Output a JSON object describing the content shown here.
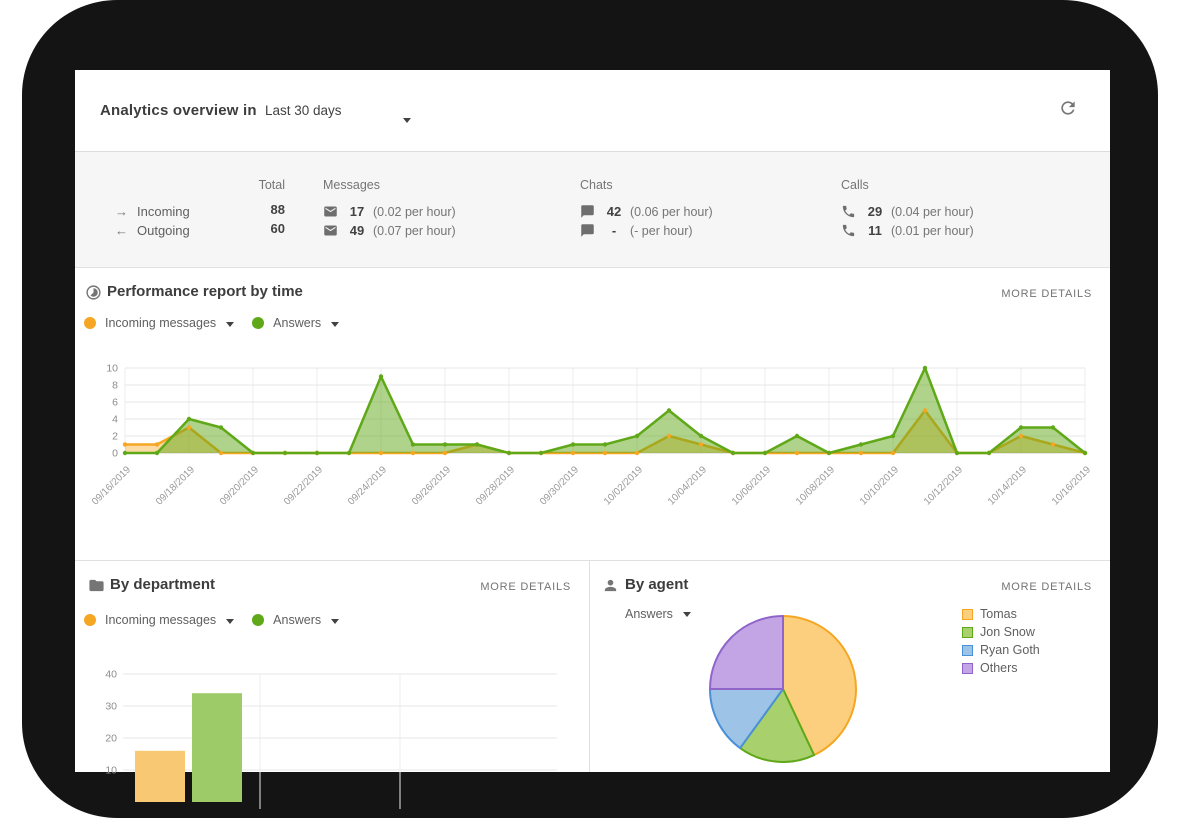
{
  "header": {
    "title": "Analytics overview in",
    "range_label": "Last 30 days"
  },
  "summary": {
    "columns": {
      "total": "Total",
      "messages": "Messages",
      "chats": "Chats",
      "calls": "Calls"
    },
    "rows": [
      {
        "arrow": "→",
        "label": "Incoming",
        "total": "88",
        "messages": {
          "value": "17",
          "rate": "(0.02 per hour)"
        },
        "chats": {
          "value": "42",
          "rate": "(0.06 per hour)"
        },
        "calls": {
          "value": "29",
          "rate": "(0.04 per hour)"
        }
      },
      {
        "arrow": "←",
        "label": "Outgoing",
        "total": "60",
        "messages": {
          "value": "49",
          "rate": "(0.07 per hour)"
        },
        "chats": {
          "value": "-",
          "rate": "(- per hour)"
        },
        "calls": {
          "value": "11",
          "rate": "(0.01 per hour)"
        }
      }
    ]
  },
  "performance": {
    "title": "Performance report by time",
    "more_details": "MORE DETAILS",
    "legend": [
      {
        "label": "Incoming messages",
        "color": "#F5A623"
      },
      {
        "label": "Answers",
        "color": "#5FA818"
      }
    ]
  },
  "department": {
    "title": "By department",
    "more_details": "MORE DETAILS",
    "legend": [
      {
        "label": "Incoming messages",
        "color": "#F5A623"
      },
      {
        "label": "Answers",
        "color": "#5FA818"
      }
    ]
  },
  "agent": {
    "title": "By agent",
    "more_details": "MORE DETAILS",
    "filter_label": "Answers",
    "legend": [
      {
        "label": "Tomas",
        "fill": "#FBCF7D",
        "border": "#F5A623"
      },
      {
        "label": "Jon Snow",
        "fill": "#A8D16E",
        "border": "#5FA818"
      },
      {
        "label": "Ryan Goth",
        "fill": "#9DC3E6",
        "border": "#4A90D9"
      },
      {
        "label": "Others",
        "fill": "#C3A5E6",
        "border": "#9065C9"
      }
    ]
  },
  "chart_data": [
    {
      "type": "area",
      "title": "Performance report by time",
      "x": [
        "09/16/2019",
        "09/17/2019",
        "09/18/2019",
        "09/19/2019",
        "09/20/2019",
        "09/21/2019",
        "09/22/2019",
        "09/23/2019",
        "09/24/2019",
        "09/25/2019",
        "09/26/2019",
        "09/27/2019",
        "09/28/2019",
        "09/29/2019",
        "09/30/2019",
        "10/01/2019",
        "10/02/2019",
        "10/03/2019",
        "10/04/2019",
        "10/05/2019",
        "10/06/2019",
        "10/07/2019",
        "10/08/2019",
        "10/09/2019",
        "10/10/2019",
        "10/11/2019",
        "10/12/2019",
        "10/13/2019",
        "10/14/2019",
        "10/15/2019",
        "10/16/2019"
      ],
      "tick_every": 2,
      "ylim": [
        0,
        10
      ],
      "yticks": [
        0,
        2,
        4,
        6,
        8,
        10
      ],
      "grid": true,
      "legend_position": "top-left",
      "series": [
        {
          "name": "Incoming messages",
          "color": "#F5A623",
          "values": [
            1,
            1,
            3,
            0,
            0,
            0,
            0,
            0,
            0,
            0,
            0,
            1,
            0,
            0,
            0,
            0,
            0,
            2,
            1,
            0,
            0,
            0,
            0,
            0,
            0,
            5,
            0,
            0,
            2,
            1,
            0
          ]
        },
        {
          "name": "Answers",
          "color": "#5FA818",
          "values": [
            0,
            0,
            4,
            3,
            0,
            0,
            0,
            0,
            9,
            1,
            1,
            1,
            0,
            0,
            1,
            1,
            2,
            5,
            2,
            0,
            0,
            2,
            0,
            1,
            2,
            10,
            0,
            0,
            3,
            3,
            0
          ]
        }
      ]
    },
    {
      "type": "bar",
      "title": "By department",
      "categories": [
        ""
      ],
      "ylim": [
        0,
        40
      ],
      "yticks": [
        0,
        10,
        20,
        30,
        40
      ],
      "grid": true,
      "series": [
        {
          "name": "Incoming messages",
          "color": "#F9C873",
          "values": [
            16
          ]
        },
        {
          "name": "Answers",
          "color": "#9CCB67",
          "values": [
            34
          ]
        }
      ]
    },
    {
      "type": "pie",
      "title": "By agent",
      "metric": "Answers",
      "labels": [
        "Tomas",
        "Jon Snow",
        "Ryan Goth",
        "Others"
      ],
      "values": [
        43,
        17,
        15,
        25
      ],
      "values_are_percent_estimates": true,
      "fills": [
        "#FBCF7D",
        "#A8D16E",
        "#9DC3E6",
        "#C3A5E6"
      ],
      "strokes": [
        "#F5A623",
        "#5FA818",
        "#4A90D9",
        "#9065C9"
      ],
      "legend_position": "right"
    }
  ]
}
